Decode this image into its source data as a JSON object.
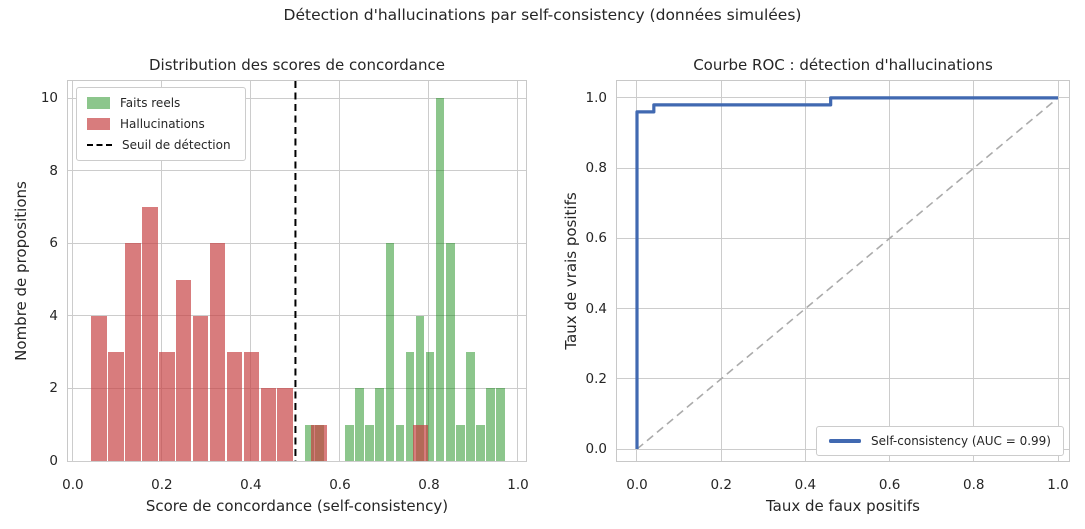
{
  "suptitle": "Détection d'hallucinations par self-consistency (données simulées)",
  "colors": {
    "facts_green": "rgba(0,128,0,0.45)",
    "halluc_red": "rgba(197,62,64,0.68)",
    "roc_blue": "#4169b1",
    "diagonal_gray": "#ababab",
    "threshold_black": "#000000",
    "grid": "#cccccc",
    "spine": "#c8c8c8",
    "text": "#262626"
  },
  "chart_data": [
    {
      "id": "hist",
      "type": "bar",
      "title": "Distribution des scores de concordance",
      "xlabel": "Score de concordance (self-consistency)",
      "ylabel": "Nombre de propositions",
      "xlim": [
        -0.011,
        1.018
      ],
      "ylim": [
        0,
        10.48
      ],
      "grid": true,
      "xticks": {
        "values": [
          0.0,
          0.2,
          0.4,
          0.6,
          0.8,
          1.0
        ],
        "labels": [
          "0.0",
          "0.2",
          "0.4",
          "0.6",
          "0.8",
          "1.0"
        ]
      },
      "yticks": {
        "values": [
          0,
          2,
          4,
          6,
          8,
          10
        ],
        "labels": [
          "0",
          "2",
          "4",
          "6",
          "8",
          "10"
        ]
      },
      "series": [
        {
          "name": "Faits reels",
          "color_key": "facts_green",
          "bin_start": 0.52,
          "bin_width": 0.0226,
          "counts": [
            1,
            1,
            0,
            0,
            1,
            2,
            1,
            2,
            6,
            1,
            3,
            4,
            3,
            10,
            6,
            1,
            3,
            1,
            2,
            2
          ]
        },
        {
          "name": "Hallucinations",
          "color_key": "halluc_red",
          "bin_start": 0.04,
          "bin_width": 0.038,
          "counts": [
            4,
            3,
            6,
            7,
            3,
            5,
            4,
            6,
            3,
            3,
            2,
            2,
            0,
            1,
            0,
            0,
            0,
            0,
            0,
            1
          ]
        }
      ],
      "threshold": {
        "x": 0.5,
        "label": "Seuil de détection"
      },
      "legend": {
        "facts": "Faits reels",
        "halluc": "Hallucinations",
        "threshold": "Seuil de détection"
      },
      "legend_position": "upper-left"
    },
    {
      "id": "roc",
      "type": "line",
      "title": "Courbe ROC : détection d'hallucinations",
      "xlabel": "Taux de faux positifs",
      "ylabel": "Taux de vrais positifs",
      "xlim": [
        -0.0475,
        1.0261
      ],
      "ylim": [
        -0.034,
        1.048
      ],
      "grid": true,
      "xticks": {
        "values": [
          0.0,
          0.2,
          0.4,
          0.6,
          0.8,
          1.0
        ],
        "labels": [
          "0.0",
          "0.2",
          "0.4",
          "0.6",
          "0.8",
          "1.0"
        ]
      },
      "yticks": {
        "values": [
          0.0,
          0.2,
          0.4,
          0.6,
          0.8,
          1.0
        ],
        "labels": [
          "0.0",
          "0.2",
          "0.4",
          "0.6",
          "0.8",
          "1.0"
        ]
      },
      "auc": 0.99,
      "series": [
        {
          "name": "Self-consistency (AUC = 0.99)",
          "x": [
            0,
            0,
            0.04,
            0.04,
            0.46,
            0.46,
            1.0
          ],
          "y": [
            0,
            0.96,
            0.96,
            0.98,
            0.98,
            1.0,
            1.0
          ]
        }
      ],
      "diagonal": {
        "x": [
          0,
          1
        ],
        "y": [
          0,
          1
        ]
      },
      "legend": {
        "roc": "Self-consistency (AUC = 0.99)"
      },
      "legend_position": "lower-right"
    }
  ]
}
